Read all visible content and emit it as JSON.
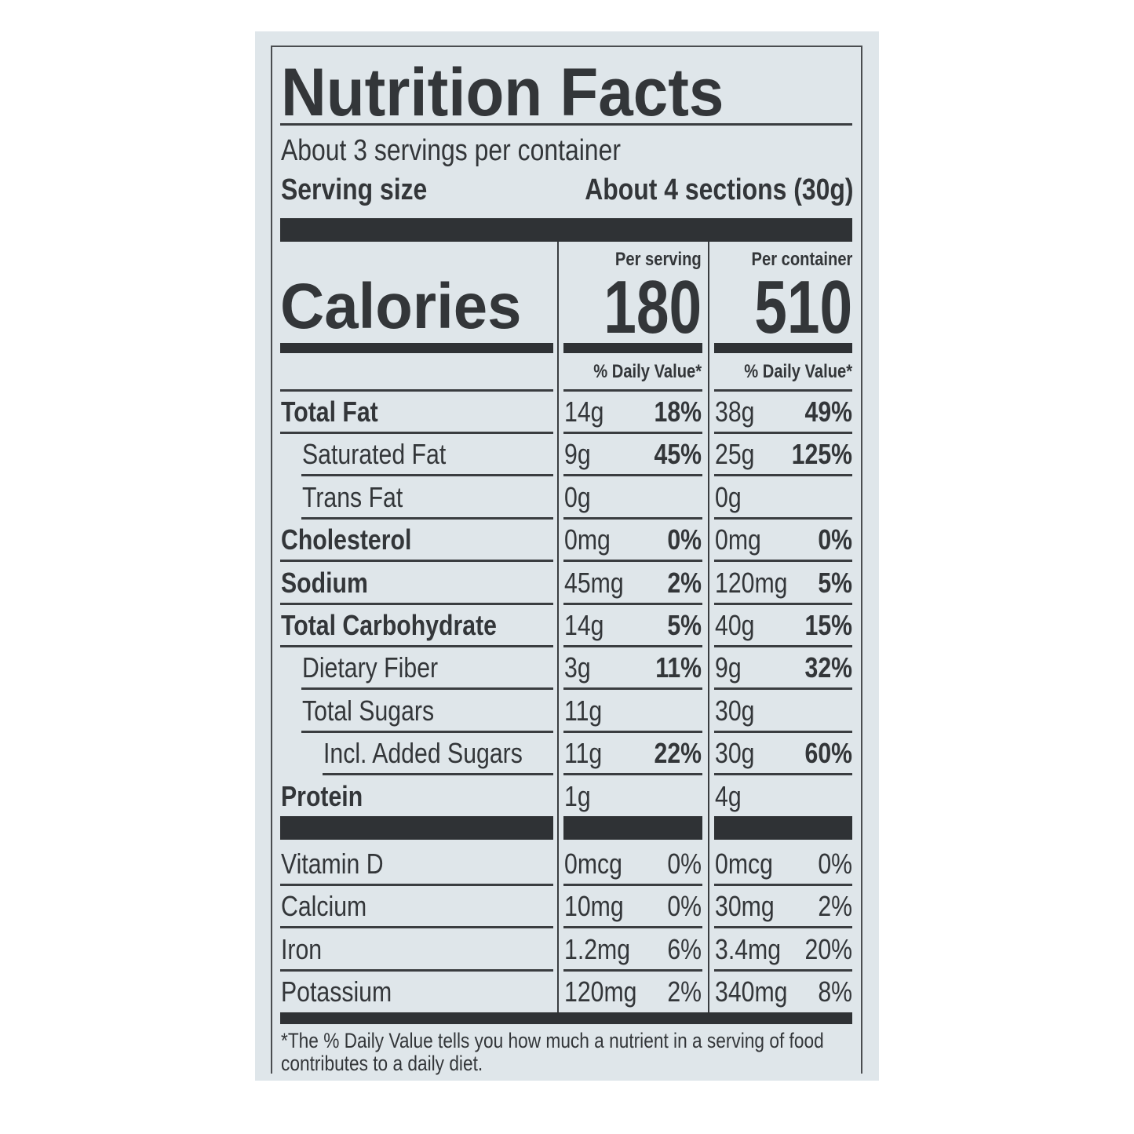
{
  "title": "Nutrition Facts",
  "servings_per_container": "About 3 servings per container",
  "serving_size_label": "Serving size",
  "serving_size_value": "About 4 sections (30g)",
  "calories_label": "Calories",
  "per_serving_label": "Per serving",
  "per_container_label": "Per container",
  "calories_per_serving": "180",
  "calories_per_container": "510",
  "daily_value_header": "% Daily Value*",
  "nutrients": [
    {
      "label": "Total Fat",
      "indent": 0,
      "bold": true,
      "s_amt": "14g",
      "s_pct": "18%",
      "c_amt": "38g",
      "c_pct": "49%"
    },
    {
      "label": "Saturated Fat",
      "indent": 1,
      "bold": false,
      "s_amt": "9g",
      "s_pct": "45%",
      "c_amt": "25g",
      "c_pct": "125%"
    },
    {
      "label": "Trans Fat",
      "indent": 1,
      "bold": false,
      "s_amt": "0g",
      "s_pct": "",
      "c_amt": "0g",
      "c_pct": ""
    },
    {
      "label": "Cholesterol",
      "indent": 0,
      "bold": true,
      "s_amt": "0mg",
      "s_pct": "0%",
      "c_amt": "0mg",
      "c_pct": "0%"
    },
    {
      "label": "Sodium",
      "indent": 0,
      "bold": true,
      "s_amt": "45mg",
      "s_pct": "2%",
      "c_amt": "120mg",
      "c_pct": "5%"
    },
    {
      "label": "Total Carbohydrate",
      "indent": 0,
      "bold": true,
      "s_amt": "14g",
      "s_pct": "5%",
      "c_amt": "40g",
      "c_pct": "15%"
    },
    {
      "label": "Dietary Fiber",
      "indent": 1,
      "bold": false,
      "s_amt": "3g",
      "s_pct": "11%",
      "c_amt": "9g",
      "c_pct": "32%"
    },
    {
      "label": "Total Sugars",
      "indent": 1,
      "bold": false,
      "s_amt": "11g",
      "s_pct": "",
      "c_amt": "30g",
      "c_pct": ""
    },
    {
      "label": "Incl. Added Sugars",
      "indent": 2,
      "bold": false,
      "s_amt": "11g",
      "s_pct": "22%",
      "c_amt": "30g",
      "c_pct": "60%"
    },
    {
      "label": "Protein",
      "indent": 0,
      "bold": true,
      "s_amt": "1g",
      "s_pct": "",
      "c_amt": "4g",
      "c_pct": ""
    }
  ],
  "vitamins": [
    {
      "label": "Vitamin D",
      "s_amt": "0mcg",
      "s_pct": "0%",
      "c_amt": "0mcg",
      "c_pct": "0%"
    },
    {
      "label": "Calcium",
      "s_amt": "10mg",
      "s_pct": "0%",
      "c_amt": "30mg",
      "c_pct": "2%"
    },
    {
      "label": "Iron",
      "s_amt": "1.2mg",
      "s_pct": "6%",
      "c_amt": "3.4mg",
      "c_pct": "20%"
    },
    {
      "label": "Potassium",
      "s_amt": "120mg",
      "s_pct": "2%",
      "c_amt": "340mg",
      "c_pct": "8%"
    }
  ],
  "footnote": "*The % Daily Value tells you how much a nutrient in a serving of food contributes to a daily diet.",
  "colors": {
    "background": "#dfe6ea",
    "ink": "#333639"
  }
}
